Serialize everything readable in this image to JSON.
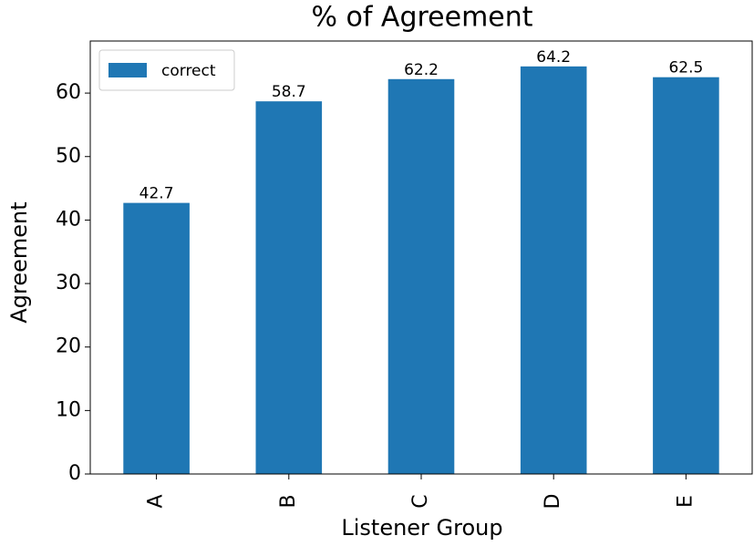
{
  "chart_data": {
    "type": "bar",
    "title": "% of Agreement",
    "x_label": "Listener Group",
    "y_label": "Agreement",
    "categories": [
      "A",
      "B",
      "C",
      "D",
      "E"
    ],
    "series": [
      {
        "name": "correct",
        "color": "#1f77b4",
        "values": [
          42.7,
          58.7,
          62.2,
          64.2,
          62.5
        ]
      }
    ],
    "ylim": [
      0,
      68.2
    ],
    "yticks": [
      0,
      10,
      20,
      30,
      40,
      50,
      60
    ],
    "legend": "upper left",
    "data_labels": true
  }
}
